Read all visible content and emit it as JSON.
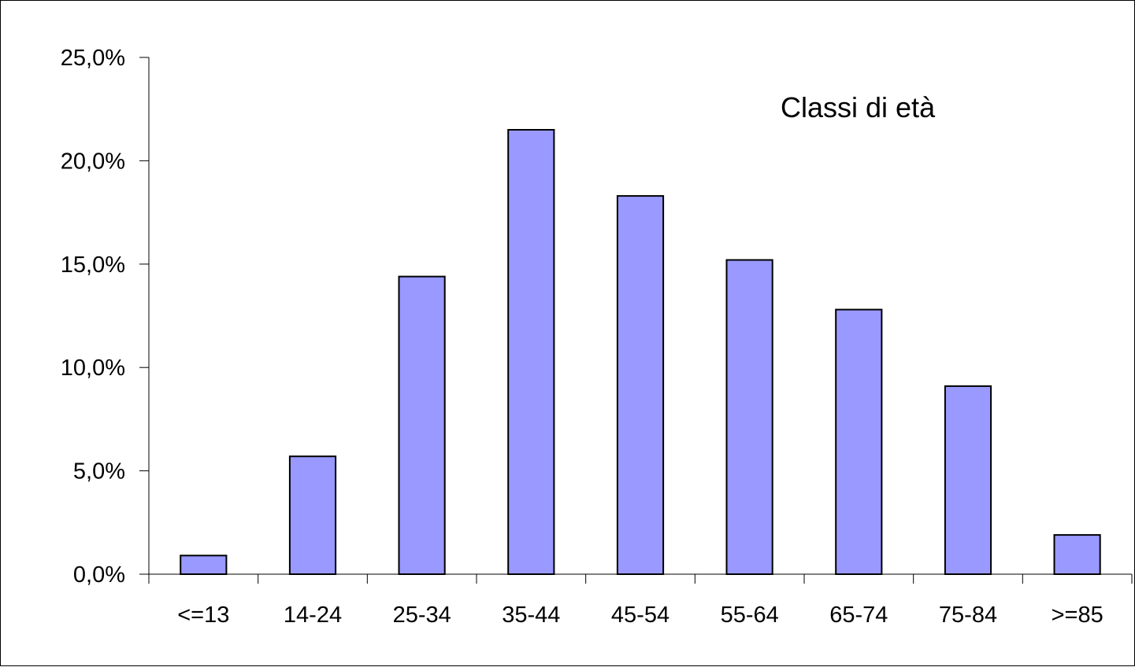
{
  "chart_data": {
    "type": "bar",
    "title": "",
    "xlabel": "",
    "ylabel": "",
    "annotation": "Classi di età",
    "categories": [
      "<=13",
      "14-24",
      "25-34",
      "35-44",
      "45-54",
      "55-64",
      "65-74",
      "75-84",
      ">=85"
    ],
    "values": [
      0.9,
      5.7,
      14.4,
      21.5,
      18.3,
      15.2,
      12.8,
      9.1,
      1.9
    ],
    "value_unit": "%",
    "ylim": [
      0,
      25
    ],
    "yticks": [
      0,
      5,
      10,
      15,
      20,
      25
    ],
    "ytick_labels": [
      "0,0%",
      "5,0%",
      "10,0%",
      "15,0%",
      "20,0%",
      "25,0%"
    ],
    "grid": false,
    "legend": "none",
    "bar_color": "#9999ff",
    "bar_edge_color": "#000000"
  }
}
